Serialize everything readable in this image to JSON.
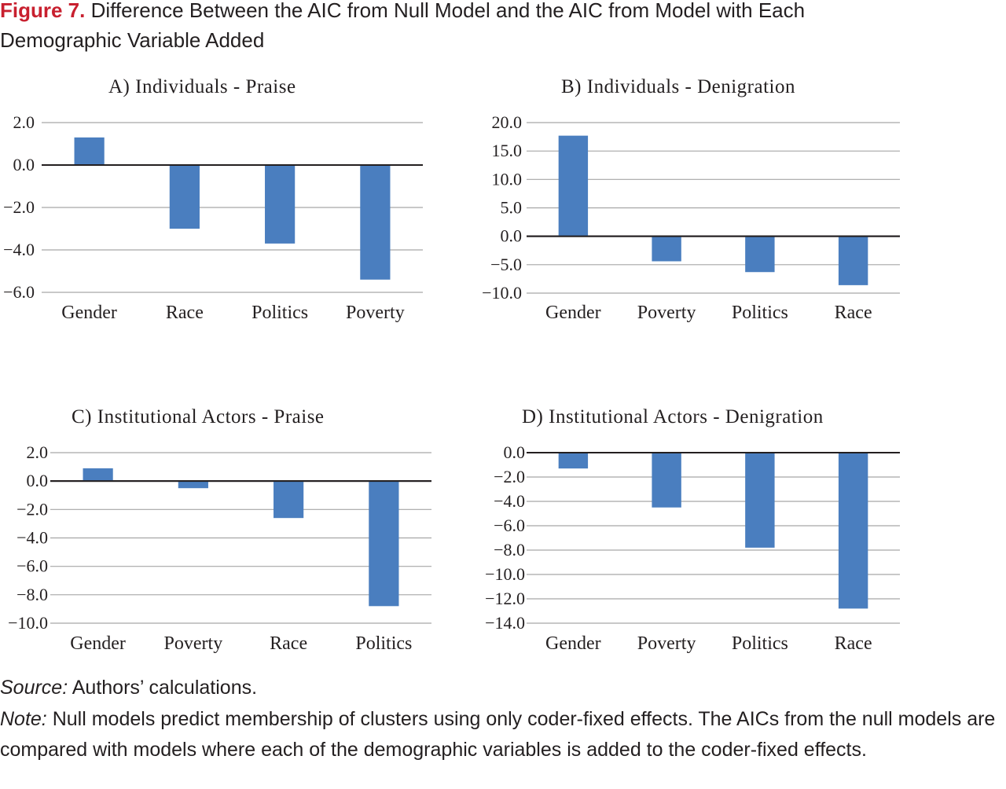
{
  "figure": {
    "label": "Figure 7.",
    "title": " Difference Between the AIC from Null Model and the AIC from Model with Each Demographic Variable Added"
  },
  "chart_data": [
    {
      "type": "bar",
      "title": "A) Individuals - Praise",
      "categories": [
        "Gender",
        "Race",
        "Politics",
        "Poverty"
      ],
      "values": [
        1.3,
        -3.0,
        -3.7,
        -5.4
      ],
      "ylim": [
        -6,
        2
      ],
      "yticks": [
        2,
        0,
        -2,
        -4,
        -6
      ],
      "tick_labels": [
        "2.0",
        "0.0",
        "−2.0",
        "−4.0",
        "−6.0"
      ],
      "grid": true,
      "bar_color": "#4a7ebf"
    },
    {
      "type": "bar",
      "title": "B) Individuals - Denigration",
      "categories": [
        "Gender",
        "Poverty",
        "Politics",
        "Race"
      ],
      "values": [
        17.7,
        -4.4,
        -6.3,
        -8.6
      ],
      "ylim": [
        -10,
        20
      ],
      "yticks": [
        20,
        15,
        10,
        5,
        0,
        -5,
        -10
      ],
      "tick_labels": [
        "20.0",
        "15.0",
        "10.0",
        "5.0",
        "0.0",
        "−5.0",
        "−10.0"
      ],
      "grid": true,
      "bar_color": "#4a7ebf"
    },
    {
      "type": "bar",
      "title": "C) Institutional Actors - Praise",
      "categories": [
        "Gender",
        "Poverty",
        "Race",
        "Politics"
      ],
      "values": [
        0.9,
        -0.5,
        -2.6,
        -8.8
      ],
      "ylim": [
        -10,
        2
      ],
      "yticks": [
        2,
        0,
        -2,
        -4,
        -6,
        -8,
        -10
      ],
      "tick_labels": [
        "2.0",
        "0.0",
        "−2.0",
        "−4.0",
        "−6.0",
        "−8.0",
        "−10.0"
      ],
      "grid": true,
      "bar_color": "#4a7ebf"
    },
    {
      "type": "bar",
      "title": "D) Institutional Actors - Denigration",
      "categories": [
        "Gender",
        "Poverty",
        "Politics",
        "Race"
      ],
      "values": [
        -1.3,
        -4.5,
        -7.8,
        -12.8
      ],
      "ylim": [
        -14,
        0
      ],
      "yticks": [
        0,
        -2,
        -4,
        -6,
        -8,
        -10,
        -12,
        -14
      ],
      "tick_labels": [
        "0.0",
        "−2.0",
        "−4.0",
        "−6.0",
        "−8.0",
        "−10.0",
        "−12.0",
        "−14.0"
      ],
      "grid": true,
      "bar_color": "#4a7ebf"
    }
  ],
  "footer": {
    "source_label": "Source:",
    "source_text": " Authors’ calculations.",
    "note_label": "Note:",
    "note_text": " Null models predict membership of clusters using only coder-fixed effects. The AICs from the null models are compared with models where each of the demographic variables is added to the coder-fixed effects."
  }
}
